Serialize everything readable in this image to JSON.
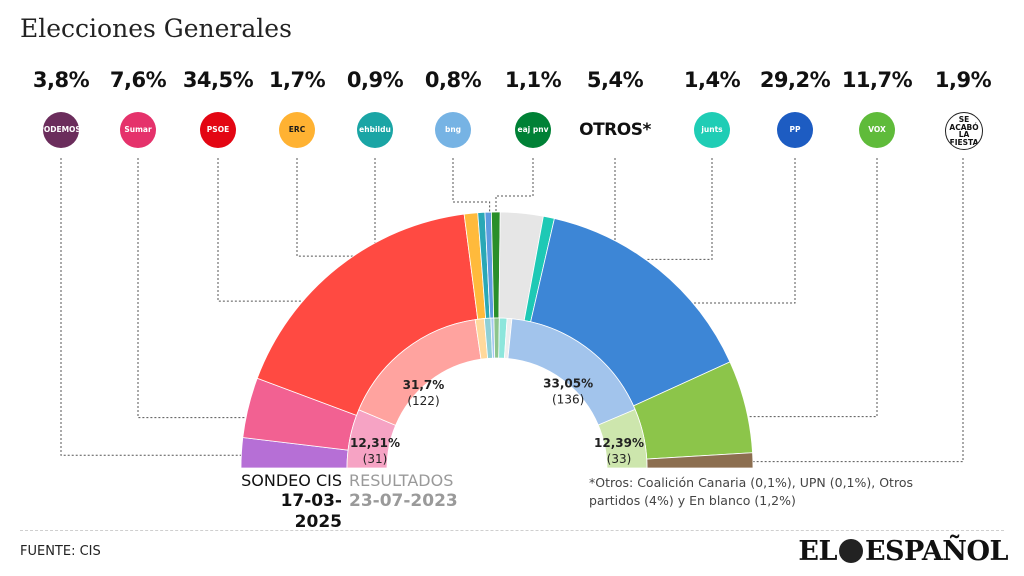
{
  "title": "Elecciones Generales",
  "parties": [
    {
      "key": "podemos",
      "pct": "3,8%",
      "logo": "PODEMOS.",
      "logo_bg": "#6b2d5c",
      "logo_fg": "#ffffff"
    },
    {
      "key": "sumar",
      "pct": "7,6%",
      "logo": "Sumar",
      "logo_bg": "#e5326b",
      "logo_fg": "#ffffff"
    },
    {
      "key": "psoe",
      "pct": "34,5%",
      "logo": "PSOE",
      "logo_bg": "#e30613",
      "logo_fg": "#ffffff"
    },
    {
      "key": "erc",
      "pct": "1,7%",
      "logo": "ERC",
      "logo_bg": "#ffb232",
      "logo_fg": "#1a1a1a"
    },
    {
      "key": "ehbildu",
      "pct": "0,9%",
      "logo": "ehbildu",
      "logo_bg": "#1aa5a5",
      "logo_fg": "#ffffff"
    },
    {
      "key": "bng",
      "pct": "0,8%",
      "logo": "bng",
      "logo_bg": "#76b3e4",
      "logo_fg": "#ffffff"
    },
    {
      "key": "pnv",
      "pct": "1,1%",
      "logo": "eaj pnv",
      "logo_bg": "#008136",
      "logo_fg": "#ffffff"
    },
    {
      "key": "otros",
      "pct": "5,4%",
      "logo": "OTROS*",
      "logo_bg": "",
      "logo_fg": "#111111"
    },
    {
      "key": "junts",
      "pct": "1,4%",
      "logo": "junts",
      "logo_bg": "#1fcdb5",
      "logo_fg": "#ffffff"
    },
    {
      "key": "pp",
      "pct": "29,2%",
      "logo": "PP",
      "logo_bg": "#1d5cc2",
      "logo_fg": "#ffffff"
    },
    {
      "key": "vox",
      "pct": "11,7%",
      "logo": "VOX",
      "logo_bg": "#5fbb3a",
      "logo_fg": "#ffffff"
    },
    {
      "key": "salf",
      "pct": "1,9%",
      "logo": "SE ACABÓ LA FIESTA",
      "logo_bg": "#ffffff",
      "logo_fg": "#111111"
    }
  ],
  "chart_data": {
    "type": "pie",
    "subtype": "half-donut, two concentric rings",
    "outer_ring": {
      "categories": [
        "Podemos",
        "Sumar",
        "PSOE",
        "ERC",
        "EH Bildu",
        "BNG",
        "PNV",
        "Otros*",
        "Junts",
        "PP",
        "Vox",
        "Se Acabó La Fiesta"
      ],
      "values": [
        3.8,
        7.6,
        34.5,
        1.7,
        0.9,
        0.8,
        1.1,
        5.4,
        1.4,
        29.2,
        11.7,
        1.9
      ],
      "colors": [
        "#b66fd6",
        "#f26192",
        "#ff4a42",
        "#ffba3c",
        "#2aa8b6",
        "#5d9be0",
        "#2a8f2a",
        "#e6e6e6",
        "#1ec9b5",
        "#3d86d6",
        "#8cc54a",
        "#8c6e50"
      ]
    },
    "inner_ring": {
      "categories": [
        "Sumar",
        "PSOE",
        "ERC",
        "EH Bildu",
        "BNG",
        "PNV",
        "Junts",
        "Otros",
        "PP",
        "Vox"
      ],
      "values": [
        12.31,
        31.7,
        1.89,
        1.36,
        0.62,
        1.12,
        1.6,
        1.0,
        33.05,
        12.39
      ],
      "colors": [
        "#f6a3c4",
        "#ffa39f",
        "#ffd99c",
        "#8fd0d6",
        "#a7c8f0",
        "#8cc58c",
        "#8de6dc",
        "#eeeeee",
        "#a2c4ec",
        "#cde6ad"
      ],
      "labels": [
        {
          "party": "Sumar",
          "pct": "12,31%",
          "seats": "(31)"
        },
        {
          "party": "PSOE",
          "pct": "31,7%",
          "seats": "(122)"
        },
        {
          "party": "PP",
          "pct": "33,05%",
          "seats": "(136)"
        },
        {
          "party": "Vox",
          "pct": "12,39%",
          "seats": "(33)"
        }
      ]
    }
  },
  "legend": {
    "cis_label": "SONDEO CIS",
    "cis_date": "17-03-2025",
    "results_label": "RESULTADOS",
    "results_date": "23-07-2023"
  },
  "note": "*Otros: Coalición Canaria (0,1%), UPN (0,1%), Otros partidos (4%) y En blanco (1,2%)",
  "source": "FUENTE: CIS",
  "brand": {
    "left": "EL",
    "right": "ESPAÑOL"
  }
}
